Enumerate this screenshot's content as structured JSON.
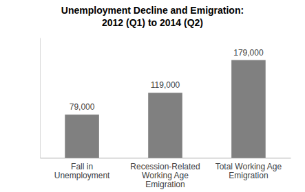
{
  "chart_data": {
    "type": "bar",
    "title": "Unemployment Decline and Emigration:",
    "subtitle": "2012 (Q1) to 2014 (Q2)",
    "categories": [
      "Fall in Unemployment",
      "Recession-Related Working Age Emigration",
      "Total Working Age Emigration"
    ],
    "values": [
      79000,
      119000,
      179000
    ],
    "value_labels": [
      "79,000",
      "119,000",
      "179,000"
    ],
    "color": "#808080",
    "ylim": [
      0,
      220000
    ],
    "grid": false,
    "data_labels": true,
    "tick_labels": "x"
  }
}
